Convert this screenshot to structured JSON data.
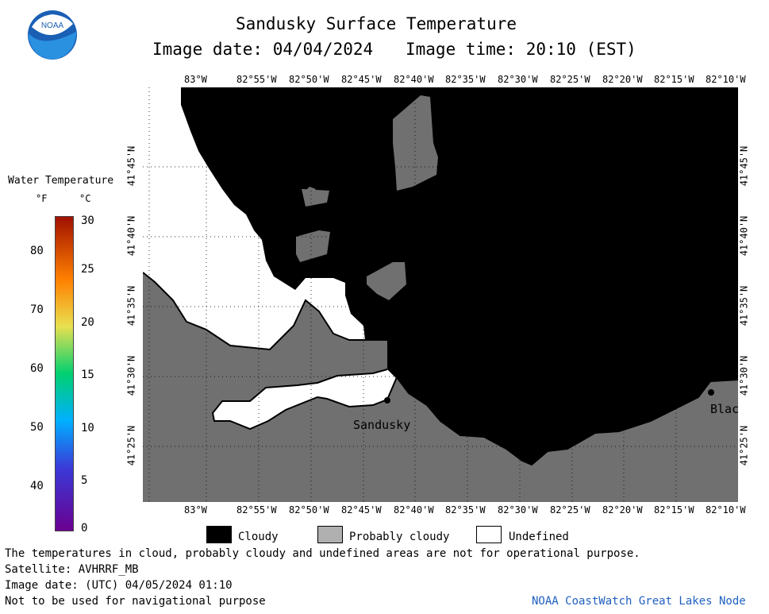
{
  "header": {
    "title": "Sandusky Surface Temperature",
    "image_date": "Image date: 04/04/2024",
    "image_time": "Image time: 20:10 (EST)"
  },
  "logo": {
    "text": "NOAA"
  },
  "colorbar": {
    "title": "Water Temperature",
    "unit_f": "°F",
    "unit_c": "°C",
    "f_ticks": [
      "80",
      "70",
      "60",
      "50",
      "40"
    ],
    "c_ticks": [
      "30",
      "25",
      "20",
      "15",
      "10",
      "5",
      "0"
    ]
  },
  "map": {
    "lon_labels": [
      "83°W",
      "82°55'W",
      "82°50'W",
      "82°45'W",
      "82°40'W",
      "82°35'W",
      "82°30'W",
      "82°25'W",
      "82°20'W",
      "82°15'W",
      "82°10'W"
    ],
    "lat_labels": [
      "41°45'N",
      "41°40'N",
      "41°35'N",
      "41°30'N",
      "41°25'N"
    ],
    "places": [
      "Sandusky",
      "Blac"
    ],
    "colors": {
      "cloudy": "#000000",
      "probably_cloudy": "#707070",
      "undefined": "#ffffff"
    }
  },
  "legend": {
    "cloudy": "Cloudy",
    "probably_cloudy": "Probably cloudy",
    "undefined": "Undefined"
  },
  "footer": {
    "disclaimer": "The temperatures in cloud, probably cloudy and undefined areas are not for operational purpose.",
    "satellite": "Satellite: AVHRRF_MB",
    "utc_date": "Image date: (UTC) 04/05/2024  01:10",
    "nav_warning": "Not to be used for navigational purpose",
    "credit": "NOAA CoastWatch Great Lakes Node"
  }
}
